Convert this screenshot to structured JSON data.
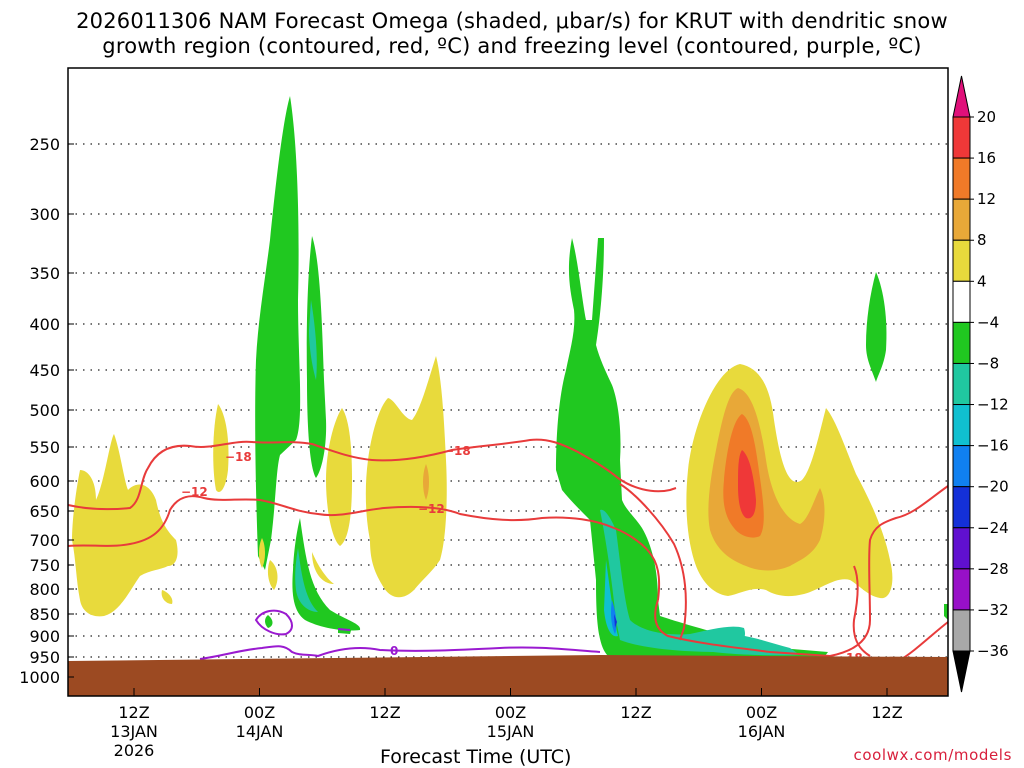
{
  "chart_data": {
    "type": "heatmap",
    "title_line1": "2026011306 NAM Forecast Omega (shaded, μbar/s) for KRUT with dendritic snow",
    "title_line2": "growth region (contoured, red, ºC) and freezing level (contoured, purple, ºC)",
    "xlabel": "Forecast Time (UTC)",
    "ylabel": "",
    "y_axis": {
      "reversed": true,
      "ticks": [
        "250",
        "300",
        "350",
        "400",
        "450",
        "500",
        "550",
        "600",
        "650",
        "700",
        "750",
        "800",
        "850",
        "900",
        "950",
        "1000"
      ]
    },
    "x_axis": {
      "ticks": [
        {
          "l1": "12Z",
          "l2": "13JAN",
          "l3": "2026"
        },
        {
          "l1": "00Z",
          "l2": "14JAN",
          "l3": ""
        },
        {
          "l1": "12Z",
          "l2": "",
          "l3": ""
        },
        {
          "l1": "00Z",
          "l2": "15JAN",
          "l3": ""
        },
        {
          "l1": "12Z",
          "l2": "",
          "l3": ""
        },
        {
          "l1": "00Z",
          "l2": "16JAN",
          "l3": ""
        },
        {
          "l1": "12Z",
          "l2": "",
          "l3": ""
        }
      ]
    },
    "colorbar": {
      "levels": [
        "20",
        "16",
        "12",
        "8",
        "4",
        "−4",
        "−8",
        "−12",
        "−16",
        "−20",
        "−24",
        "−28",
        "−32",
        "−36"
      ],
      "colors": [
        "#ef3838",
        "#f07a28",
        "#e8a838",
        "#e8da3c",
        "#ffffff",
        "#20c820",
        "#20c8a0",
        "#10c0d0",
        "#1080f0",
        "#1430d8",
        "#6010d0",
        "#9810c8",
        "#a8a8a8"
      ],
      "top_arrow_color": "#e0107a",
      "bottom_arrow_color": "#000000"
    },
    "contour_labels": {
      "dgz_18": "−18",
      "dgz_12": "−12",
      "freezing_0": "0"
    },
    "ground_color": "#9c4a22"
  },
  "footer": {
    "credit": "coolwx.com/models"
  }
}
